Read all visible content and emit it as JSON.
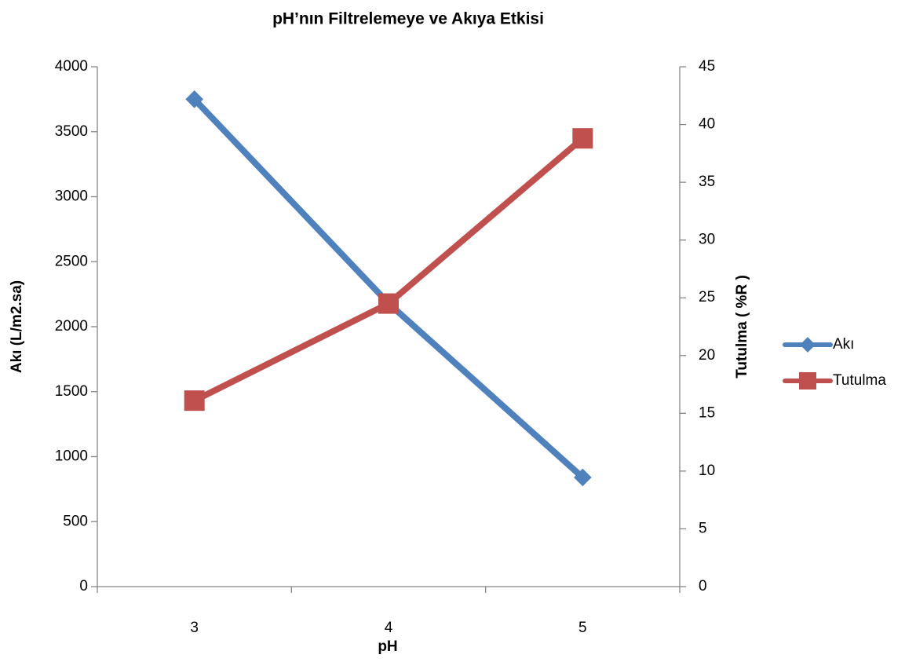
{
  "chart_data": {
    "type": "line",
    "title": "pH’nın Filtrelemeye ve Akıya Etkisi",
    "xlabel": "pH",
    "ylabel_left": "Akı (L/m2.sa)",
    "ylabel_right": "Tutulma ( %R )",
    "categories": [
      "3",
      "4",
      "5"
    ],
    "y_left": {
      "min": 0,
      "max": 4000,
      "step": 500,
      "ticks": [
        "0",
        "500",
        "1000",
        "1500",
        "2000",
        "2500",
        "3000",
        "3500",
        "4000"
      ]
    },
    "y_right": {
      "min": 0,
      "max": 45,
      "step": 5,
      "ticks": [
        "0",
        "5",
        "10",
        "15",
        "20",
        "25",
        "30",
        "35",
        "40",
        "45"
      ]
    },
    "grid": false,
    "legend_position": "right",
    "series": [
      {
        "name": "Akı",
        "axis": "left",
        "marker": "diamond",
        "color": "#4F81BD",
        "values": [
          3750,
          2180,
          840
        ]
      },
      {
        "name": "Tutulma",
        "axis": "right",
        "marker": "square",
        "color": "#C0504D",
        "values": [
          16.1,
          24.5,
          38.8
        ]
      }
    ]
  }
}
